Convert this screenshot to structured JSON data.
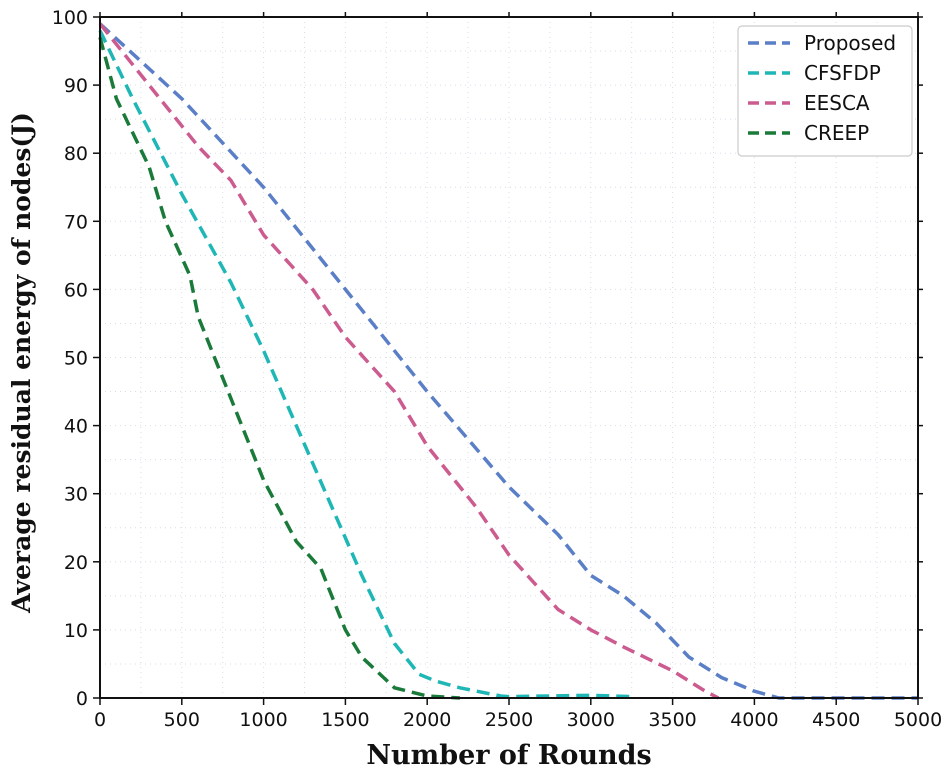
{
  "chart_data": {
    "type": "line",
    "title": "",
    "xlabel": "Number of Rounds",
    "ylabel": "Average residual energy of nodes(J)",
    "xlim": [
      0,
      5000
    ],
    "ylim": [
      0,
      100
    ],
    "xticks": [
      0,
      500,
      1000,
      1500,
      2000,
      2500,
      3000,
      3500,
      4000,
      4500,
      5000
    ],
    "yticks": [
      0,
      10,
      20,
      30,
      40,
      50,
      60,
      70,
      80,
      90,
      100
    ],
    "grid": true,
    "legend_position": "top-right",
    "line_style": "dashed",
    "series": [
      {
        "name": "Proposed",
        "color": "#5b7fc7",
        "x": [
          0,
          500,
          1000,
          1500,
          2000,
          2500,
          2800,
          3000,
          3200,
          3400,
          3600,
          3800,
          4000,
          4150,
          4500,
          5000
        ],
        "y": [
          99,
          88,
          75,
          60,
          45,
          31,
          24,
          18,
          15,
          11,
          6,
          3,
          1,
          0,
          0,
          0
        ]
      },
      {
        "name": "CFSFDP",
        "color": "#1fb6b6",
        "x": [
          0,
          200,
          500,
          800,
          1000,
          1200,
          1400,
          1600,
          1800,
          1950,
          2050,
          2200,
          2450,
          2500,
          3000,
          3250
        ],
        "y": [
          98,
          88,
          74,
          61,
          51,
          40,
          29,
          18,
          8,
          3.5,
          2.5,
          1.5,
          0.3,
          0.2,
          0.4,
          0.2
        ]
      },
      {
        "name": "EESCA",
        "color": "#cc5c8f",
        "x": [
          0,
          300,
          600,
          800,
          1000,
          1300,
          1500,
          1800,
          2000,
          2300,
          2500,
          2800,
          3000,
          3200,
          3500,
          3700,
          3780
        ],
        "y": [
          99,
          90,
          81,
          76,
          68,
          60,
          53,
          45,
          37,
          28,
          21,
          13,
          10,
          7.5,
          4,
          1,
          0
        ]
      },
      {
        "name": "CREEP",
        "color": "#1a7a3a",
        "x": [
          0,
          100,
          200,
          300,
          400,
          550,
          600,
          700,
          800,
          1000,
          1200,
          1350,
          1400,
          1500,
          1600,
          1800,
          2000,
          2200
        ],
        "y": [
          97,
          88,
          83,
          78,
          70,
          62,
          56,
          50,
          44,
          32,
          23,
          19,
          16,
          10,
          6,
          1.5,
          0.3,
          0
        ]
      }
    ]
  }
}
